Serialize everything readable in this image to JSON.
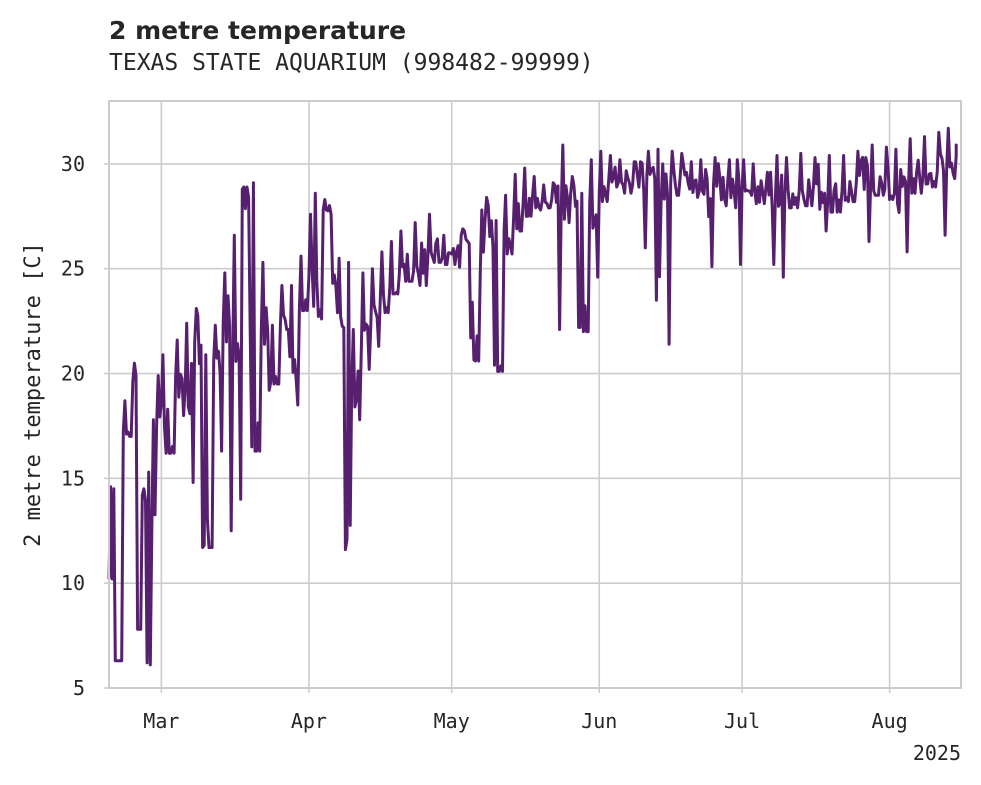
{
  "chart_data": {
    "type": "line",
    "title": "2 metre temperature",
    "subtitle": "TEXAS STATE AQUARIUM (998482-99999)",
    "xlabel": "",
    "ylabel": "2 metre temperature [C]",
    "x_start": "2025-02-18",
    "x_end": "2025-08-16",
    "xlim": [
      "2025-02-18",
      "2025-08-16"
    ],
    "ylim": [
      5,
      33
    ],
    "xticks": [
      {
        "date": "2025-03-01",
        "label": "Mar"
      },
      {
        "date": "2025-04-01",
        "label": "Apr"
      },
      {
        "date": "2025-05-01",
        "label": "May"
      },
      {
        "date": "2025-06-01",
        "label": "Jun"
      },
      {
        "date": "2025-07-01",
        "label": "Jul"
      },
      {
        "date": "2025-08-01",
        "label": "Aug"
      }
    ],
    "x_offset_label": "2025",
    "yticks": [
      5,
      10,
      15,
      20,
      25,
      30
    ],
    "grid": true,
    "legend": "none",
    "colors": {
      "line": "#56206e",
      "grid": "#cccccc",
      "frame": "#cccccc",
      "text": "#262626"
    },
    "series": [
      {
        "x": [
          "2025-02-18",
          "2025-02-19",
          "2025-02-21",
          "2025-02-23",
          "2025-02-24",
          "2025-02-25",
          "2025-02-26",
          "2025-02-27",
          "2025-02-28",
          "2025-03-01",
          "2025-03-02",
          "2025-03-04",
          "2025-03-06",
          "2025-03-08",
          "2025-03-10",
          "2025-03-12",
          "2025-03-14",
          "2025-03-16",
          "2025-03-18",
          "2025-03-20",
          "2025-03-22",
          "2025-03-24",
          "2025-03-26",
          "2025-03-28",
          "2025-03-30",
          "2025-04-01",
          "2025-04-02",
          "2025-04-04",
          "2025-04-06",
          "2025-04-07",
          "2025-04-09",
          "2025-04-10",
          "2025-04-12",
          "2025-04-14",
          "2025-04-16",
          "2025-04-18",
          "2025-04-20",
          "2025-04-23",
          "2025-04-26",
          "2025-04-29",
          "2025-05-02",
          "2025-05-03",
          "2025-05-05",
          "2025-05-07",
          "2025-05-08",
          "2025-05-10",
          "2025-05-12",
          "2025-05-14",
          "2025-05-16",
          "2025-05-18",
          "2025-05-20",
          "2025-05-22",
          "2025-05-24",
          "2025-05-26",
          "2025-05-28",
          "2025-05-30",
          "2025-06-01",
          "2025-06-03",
          "2025-06-05",
          "2025-06-08",
          "2025-06-11",
          "2025-06-13",
          "2025-06-14",
          "2025-06-16",
          "2025-06-18",
          "2025-06-20",
          "2025-06-22",
          "2025-06-25",
          "2025-06-28",
          "2025-07-01",
          "2025-07-03",
          "2025-07-06",
          "2025-07-08",
          "2025-07-10",
          "2025-07-13",
          "2025-07-16",
          "2025-07-19",
          "2025-07-22",
          "2025-07-25",
          "2025-07-28",
          "2025-07-31",
          "2025-08-02",
          "2025-08-05",
          "2025-08-08",
          "2025-08-11",
          "2025-08-13",
          "2025-08-15"
        ],
        "y": [
          10.2,
          14.5,
          17.2,
          19.6,
          7.8,
          14.2,
          6.2,
          12.5,
          17.5,
          18.6,
          16.2,
          19.8,
          19.3,
          21.5,
          11.8,
          20.6,
          22.4,
          21.3,
          28.8,
          16.5,
          22.1,
          19.6,
          22.3,
          20.8,
          23.1,
          24.6,
          23.2,
          27.8,
          24.3,
          22.9,
          12.1,
          19.4,
          21.1,
          22.3,
          23.6,
          24.1,
          24.7,
          24.9,
          25.6,
          25.5,
          25.8,
          26.6,
          21.7,
          24.9,
          27.3,
          20.4,
          26.8,
          27.4,
          28.1,
          28.5,
          28.2,
          28.3,
          27.8,
          28.6,
          22.2,
          28.1,
          28.7,
          29.3,
          29.1,
          29.0,
          29.5,
          23.5,
          28.2,
          29.1,
          29.4,
          28.8,
          28.7,
          29.0,
          29.2,
          28.9,
          28.5,
          28.8,
          28.4,
          28.6,
          28.7,
          28.9,
          28.2,
          28.7,
          29.1,
          28.9,
          28.8,
          28.6,
          29.1,
          29.4,
          29.6,
          29.8,
          30.4
        ],
        "min": [
          10.2,
          6.3,
          17.0,
          19.6,
          7.8,
          6.1,
          6.1,
          9.8,
          13.8,
          12.1,
          16.2,
          18.0,
          14.8,
          11.7,
          11.7,
          16.3,
          12.5,
          14.0,
          22.0,
          16.3,
          19.2,
          19.5,
          22.1,
          18.5,
          23.0,
          23.5,
          22.6,
          27.6,
          11.7,
          11.6,
          11.9,
          17.8,
          20.2,
          21.3,
          22.9,
          23.8,
          24.4,
          24.2,
          25.3,
          25.2,
          21.8,
          26.2,
          20.6,
          20.7,
          26.0,
          20.1,
          25.7,
          26.8,
          27.5,
          27.8,
          27.9,
          22.1,
          27.2,
          22.2,
          22.0,
          24.6,
          28.2,
          28.9,
          28.6,
          26.0,
          29.3,
          22.4,
          21.4,
          28.5,
          29.1,
          28.4,
          25.1,
          28.0,
          25.2,
          28.7,
          28.1,
          25.2,
          24.6,
          27.9,
          28.0,
          26.8,
          27.7,
          28.2,
          26.3,
          28.5,
          28.3,
          25.8,
          28.6,
          28.9,
          26.6,
          29.3,
          28.3
        ],
        "max": [
          14.6,
          6.3,
          18.7,
          20.5,
          7.8,
          14.5,
          15.3,
          17.8,
          19.9,
          20.9,
          18.3,
          21.6,
          22.4,
          23.1,
          20.9,
          22.3,
          24.8,
          26.6,
          28.9,
          29.1,
          25.3,
          22.3,
          24.2,
          24.2,
          25.6,
          27.6,
          28.6,
          28.3,
          24.7,
          25.5,
          25.3,
          22.1,
          24.8,
          25.0,
          25.8,
          26.3,
          26.8,
          27.2,
          27.6,
          26.6,
          26.1,
          26.9,
          23.4,
          27.8,
          28.4,
          27.3,
          28.5,
          29.5,
          29.8,
          29.4,
          29.0,
          29.1,
          30.9,
          29.4,
          28.6,
          30.2,
          30.6,
          30.4,
          30.2,
          30.1,
          30.6,
          30.7,
          30.0,
          30.6,
          30.5,
          30.1,
          30.2,
          30.3,
          30.2,
          30.2,
          30.0,
          29.6,
          30.4,
          30.3,
          30.5,
          30.3,
          30.4,
          30.4,
          30.6,
          30.9,
          30.8,
          30.7,
          31.2,
          31.3,
          31.5,
          31.7,
          30.9
        ]
      }
    ]
  }
}
